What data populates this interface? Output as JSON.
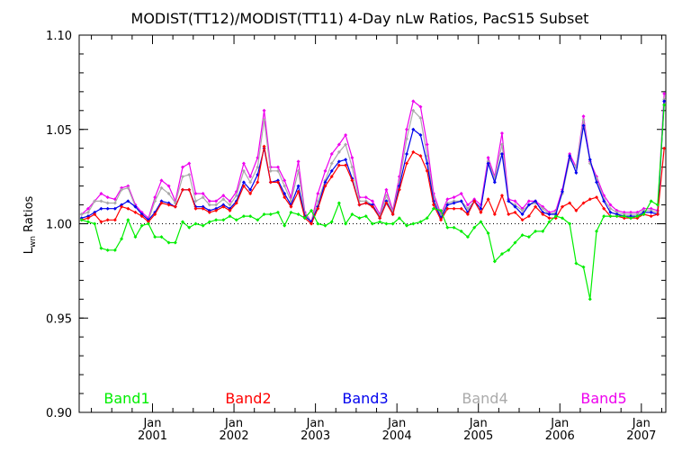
{
  "chart_data": {
    "type": "line",
    "title": "MODIST(TT12)/MODIST(TT11) 4-Day nLw Ratios, PacS15 Subset",
    "xlabel": "",
    "ylabel_main": "L",
    "ylabel_sub": "wn",
    "ylabel_rest": " Ratios",
    "xlim": [
      2000.1,
      2007.3
    ],
    "ylim": [
      0.9,
      1.1
    ],
    "yticks": [
      0.9,
      0.95,
      1.0,
      1.05,
      1.1
    ],
    "ytick_labels": [
      "0.90",
      "0.95",
      "1.00",
      "1.05",
      "1.10"
    ],
    "xtick_years": [
      "2001",
      "2002",
      "2003",
      "2004",
      "2005",
      "2006",
      "2007"
    ],
    "xtick_month": "Jan",
    "reference_line": 1.0,
    "x": [
      2000.13,
      2000.21,
      2000.29,
      2000.37,
      2000.45,
      2000.54,
      2000.62,
      2000.7,
      2000.79,
      2000.87,
      2000.95,
      2001.03,
      2001.11,
      2001.2,
      2001.28,
      2001.37,
      2001.45,
      2001.53,
      2001.62,
      2001.7,
      2001.78,
      2001.87,
      2001.95,
      2002.03,
      2002.12,
      2002.2,
      2002.29,
      2002.37,
      2002.45,
      2002.54,
      2002.62,
      2002.7,
      2002.79,
      2002.87,
      2002.95,
      2003.03,
      2003.12,
      2003.2,
      2003.29,
      2003.37,
      2003.45,
      2003.54,
      2003.62,
      2003.7,
      2003.79,
      2003.87,
      2003.95,
      2004.03,
      2004.12,
      2004.2,
      2004.29,
      2004.37,
      2004.45,
      2004.54,
      2004.62,
      2004.7,
      2004.79,
      2004.87,
      2004.95,
      2005.03,
      2005.12,
      2005.2,
      2005.29,
      2005.37,
      2005.45,
      2005.54,
      2005.62,
      2005.7,
      2005.79,
      2005.87,
      2005.95,
      2006.03,
      2006.12,
      2006.2,
      2006.29,
      2006.37,
      2006.45,
      2006.54,
      2006.62,
      2006.7,
      2006.79,
      2006.87,
      2006.95,
      2007.03,
      2007.12,
      2007.2,
      2007.28
    ],
    "series": [
      {
        "name": "Band1",
        "color": "#00ee00",
        "values": [
          1.002,
          1.001,
          1.0,
          0.987,
          0.986,
          0.986,
          0.992,
          1.002,
          0.993,
          0.999,
          1.0,
          0.993,
          0.993,
          0.99,
          0.99,
          1.001,
          0.998,
          1.0,
          0.999,
          1.001,
          1.002,
          1.002,
          1.004,
          1.002,
          1.004,
          1.004,
          1.002,
          1.005,
          1.005,
          1.006,
          0.999,
          1.006,
          1.005,
          1.003,
          1.007,
          1.0,
          0.999,
          1.001,
          1.011,
          1.0,
          1.005,
          1.003,
          1.004,
          1.0,
          1.001,
          1.0,
          1.0,
          1.003,
          0.999,
          1.0,
          1.001,
          1.003,
          1.008,
          1.007,
          0.998,
          0.998,
          0.996,
          0.993,
          0.998,
          1.001,
          0.995,
          0.98,
          0.984,
          0.986,
          0.99,
          0.994,
          0.993,
          0.996,
          0.996,
          1.001,
          1.004,
          1.003,
          1.0,
          0.979,
          0.977,
          0.96,
          0.996,
          1.004,
          1.004,
          1.004,
          1.004,
          1.003,
          1.004,
          1.005,
          1.012,
          1.01,
          1.063
        ]
      },
      {
        "name": "Band2",
        "color": "#ff0000",
        "values": [
          1.002,
          1.003,
          1.005,
          1.001,
          1.002,
          1.002,
          1.009,
          1.008,
          1.006,
          1.004,
          1.001,
          1.005,
          1.011,
          1.01,
          1.009,
          1.018,
          1.018,
          1.008,
          1.008,
          1.006,
          1.007,
          1.009,
          1.007,
          1.011,
          1.02,
          1.016,
          1.022,
          1.041,
          1.022,
          1.022,
          1.014,
          1.009,
          1.017,
          1.003,
          1.0,
          1.008,
          1.02,
          1.025,
          1.031,
          1.031,
          1.023,
          1.01,
          1.011,
          1.009,
          1.003,
          1.011,
          1.005,
          1.018,
          1.032,
          1.038,
          1.036,
          1.028,
          1.01,
          1.002,
          1.008,
          1.008,
          1.008,
          1.005,
          1.012,
          1.006,
          1.013,
          1.005,
          1.015,
          1.005,
          1.006,
          1.002,
          1.004,
          1.009,
          1.005,
          1.003,
          1.003,
          1.009,
          1.011,
          1.007,
          1.011,
          1.013,
          1.014,
          1.008,
          1.004,
          1.004,
          1.003,
          1.003,
          1.003,
          1.005,
          1.004,
          1.005,
          1.04
        ]
      },
      {
        "name": "Band3",
        "color": "#0000ee",
        "values": [
          1.003,
          1.004,
          1.006,
          1.008,
          1.008,
          1.008,
          1.01,
          1.012,
          1.009,
          1.005,
          1.002,
          1.006,
          1.012,
          1.011,
          1.009,
          1.018,
          1.018,
          1.009,
          1.009,
          1.007,
          1.008,
          1.01,
          1.008,
          1.012,
          1.022,
          1.018,
          1.026,
          1.04,
          1.022,
          1.023,
          1.016,
          1.01,
          1.02,
          1.004,
          1.001,
          1.009,
          1.022,
          1.028,
          1.033,
          1.034,
          1.024,
          1.01,
          1.011,
          1.01,
          1.003,
          1.012,
          1.005,
          1.02,
          1.037,
          1.05,
          1.047,
          1.032,
          1.012,
          1.003,
          1.01,
          1.011,
          1.012,
          1.006,
          1.012,
          1.008,
          1.032,
          1.022,
          1.037,
          1.012,
          1.009,
          1.005,
          1.01,
          1.012,
          1.006,
          1.005,
          1.005,
          1.017,
          1.036,
          1.027,
          1.052,
          1.034,
          1.022,
          1.012,
          1.006,
          1.005,
          1.004,
          1.004,
          1.004,
          1.006,
          1.006,
          1.005,
          1.065
        ]
      },
      {
        "name": "Band4",
        "color": "#aaaaaa",
        "values": [
          1.005,
          1.006,
          1.012,
          1.012,
          1.011,
          1.011,
          1.018,
          1.019,
          1.009,
          1.005,
          1.002,
          1.012,
          1.019,
          1.016,
          1.011,
          1.025,
          1.026,
          1.012,
          1.014,
          1.01,
          1.01,
          1.013,
          1.01,
          1.015,
          1.028,
          1.022,
          1.03,
          1.055,
          1.028,
          1.028,
          1.02,
          1.012,
          1.028,
          1.005,
          1.001,
          1.012,
          1.023,
          1.032,
          1.038,
          1.042,
          1.03,
          1.012,
          1.012,
          1.01,
          1.004,
          1.015,
          1.006,
          1.022,
          1.045,
          1.06,
          1.056,
          1.036,
          1.014,
          1.004,
          1.011,
          1.012,
          1.012,
          1.008,
          1.012,
          1.008,
          1.033,
          1.024,
          1.042,
          1.012,
          1.01,
          1.007,
          1.01,
          1.011,
          1.008,
          1.005,
          1.006,
          1.016,
          1.034,
          1.03,
          1.055,
          1.032,
          1.024,
          1.013,
          1.008,
          1.006,
          1.005,
          1.005,
          1.005,
          1.007,
          1.007,
          1.006,
          1.066
        ]
      },
      {
        "name": "Band5",
        "color": "#ee00ee",
        "values": [
          1.005,
          1.008,
          1.012,
          1.016,
          1.014,
          1.013,
          1.019,
          1.02,
          1.01,
          1.006,
          1.003,
          1.014,
          1.023,
          1.02,
          1.012,
          1.03,
          1.032,
          1.016,
          1.016,
          1.012,
          1.012,
          1.015,
          1.012,
          1.017,
          1.032,
          1.025,
          1.035,
          1.06,
          1.03,
          1.03,
          1.023,
          1.014,
          1.033,
          1.006,
          1.001,
          1.016,
          1.028,
          1.037,
          1.042,
          1.047,
          1.035,
          1.014,
          1.014,
          1.012,
          1.005,
          1.018,
          1.007,
          1.025,
          1.05,
          1.065,
          1.062,
          1.042,
          1.016,
          1.005,
          1.013,
          1.014,
          1.016,
          1.01,
          1.013,
          1.01,
          1.035,
          1.025,
          1.048,
          1.013,
          1.012,
          1.008,
          1.012,
          1.012,
          1.009,
          1.006,
          1.007,
          1.018,
          1.037,
          1.03,
          1.057,
          1.033,
          1.025,
          1.015,
          1.01,
          1.007,
          1.006,
          1.006,
          1.006,
          1.008,
          1.008,
          1.007,
          1.069
        ]
      }
    ]
  }
}
